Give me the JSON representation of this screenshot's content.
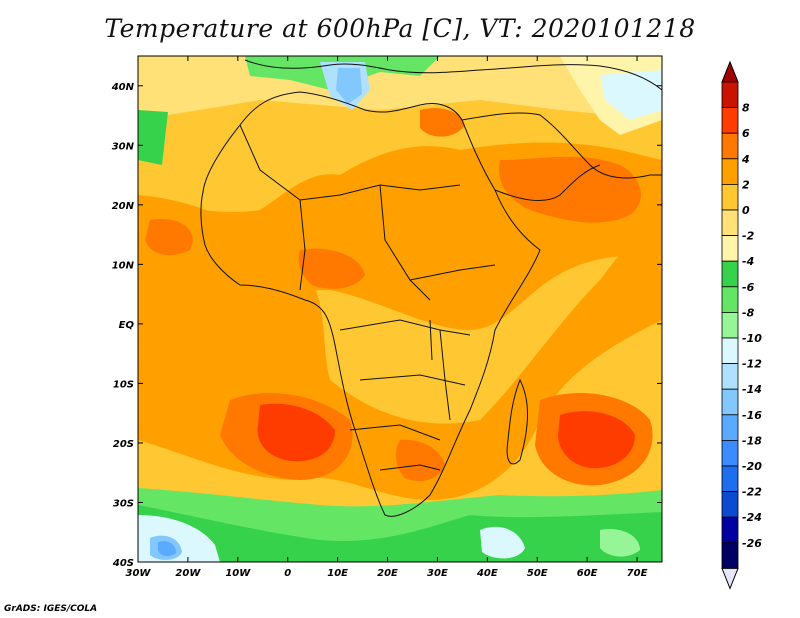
{
  "title": "Temperature at 600hPa [C], VT: 2020101218",
  "credit": "GrADS: IGES/COLA",
  "map": {
    "lon_labels": [
      "30W",
      "20W",
      "10W",
      "0",
      "10E",
      "20E",
      "30E",
      "40E",
      "50E",
      "60E",
      "70E"
    ],
    "lat_labels": [
      "40N",
      "30N",
      "20N",
      "10N",
      "EQ",
      "10S",
      "20S",
      "30S",
      "40S"
    ]
  },
  "colorbar": {
    "labels": [
      "8",
      "6",
      "4",
      "2",
      "0",
      "-2",
      "-4",
      "-6",
      "-8",
      "-10",
      "-12",
      "-14",
      "-16",
      "-18",
      "-20",
      "-22",
      "-24",
      "-26"
    ],
    "colors": [
      "#c81400",
      "#ff3c00",
      "#ff7800",
      "#ffa000",
      "#ffc832",
      "#ffe178",
      "#fff5aa",
      "#37d24b",
      "#64e664",
      "#96f596",
      "#dcf8ff",
      "#afe1ff",
      "#82c8ff",
      "#5aaaff",
      "#3c8cff",
      "#1e6ef0",
      "#0a4bd2",
      "#0000a0",
      "#000064"
    ],
    "top_arrow_color": "#a00000",
    "bottom_arrow_color": "#e6e6fa"
  }
}
